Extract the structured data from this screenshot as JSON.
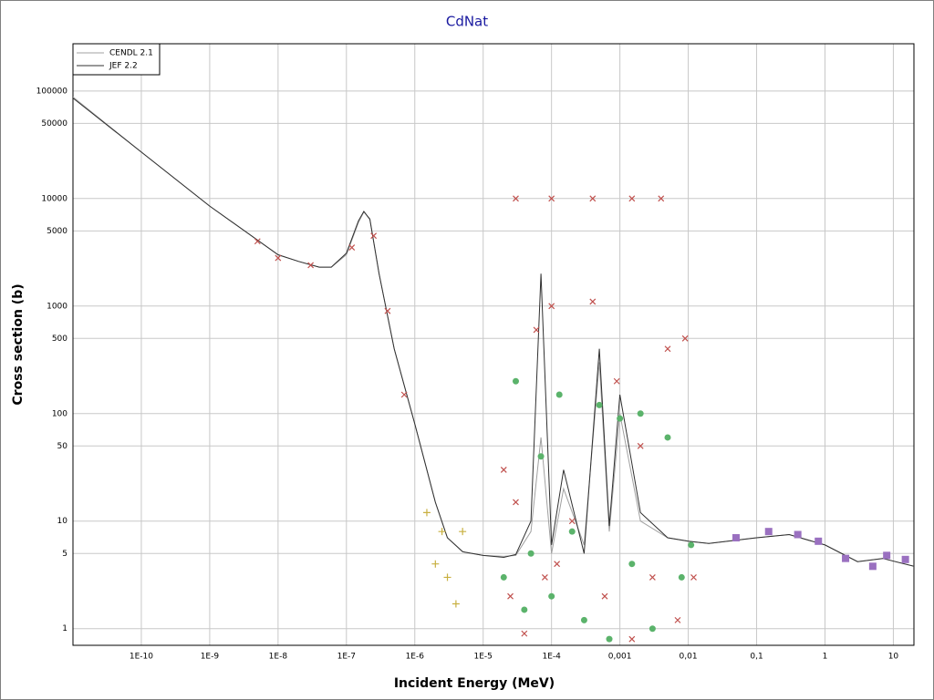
{
  "chart_data": {
    "type": "line",
    "title": "CdNat",
    "x_label": "Incident Energy (MeV)",
    "y_label": "Cross section (b)",
    "xlog": true,
    "ylog": true,
    "grid": true,
    "legend": "top-left",
    "xlim": [
      1e-11,
      20
    ],
    "ylim": [
      0.7,
      275000
    ],
    "xticks": [
      {
        "value": 1e-10,
        "label": "1E-10"
      },
      {
        "value": 1e-09,
        "label": "1E-9"
      },
      {
        "value": 1e-08,
        "label": "1E-8"
      },
      {
        "value": 1e-07,
        "label": "1E-7"
      },
      {
        "value": 1e-06,
        "label": "1E-6"
      },
      {
        "value": 1e-05,
        "label": "1E-5"
      },
      {
        "value": 0.0001,
        "label": "1E-4"
      },
      {
        "value": 0.001,
        "label": "0,001"
      },
      {
        "value": 0.01,
        "label": "0,01"
      },
      {
        "value": 0.1,
        "label": "0,1"
      },
      1,
      10
    ],
    "yticks": [
      1,
      5,
      10,
      50,
      100,
      500,
      1000,
      5000,
      10000,
      50000,
      100000
    ],
    "series": [
      {
        "name": "CENDL 2.1",
        "color": "#a0a0a0",
        "x": [
          1e-11,
          1e-10,
          1e-09,
          1e-08,
          2e-08,
          4e-08,
          6e-08,
          1e-07,
          1.5e-07,
          1.8e-07,
          2.2e-07,
          3e-07,
          5e-07,
          1e-06,
          2e-06,
          3e-06,
          5e-06,
          1e-05,
          2e-05,
          3e-05,
          5e-05,
          7e-05,
          0.0001,
          0.00015,
          0.0003,
          0.0005,
          0.0007,
          0.001,
          0.002,
          0.005,
          0.01,
          0.02,
          0.1,
          0.3,
          1,
          3,
          7,
          20
        ],
        "values": [
          88000,
          27000,
          8500,
          3000,
          2600,
          2300,
          2300,
          3000,
          6000,
          7500,
          6500,
          2000,
          400,
          80,
          15,
          7,
          5.2,
          4.8,
          4.7,
          4.8,
          8,
          60,
          5,
          20,
          6,
          300,
          8,
          100,
          10,
          7,
          6.5,
          6.2,
          7,
          7.5,
          6,
          4.2,
          4.5,
          3.8
        ]
      },
      {
        "name": "JEF 2.2",
        "color": "#303030",
        "x": [
          1e-11,
          1e-10,
          1e-09,
          1e-08,
          2e-08,
          4e-08,
          6e-08,
          1e-07,
          1.5e-07,
          1.8e-07,
          2.2e-07,
          3e-07,
          5e-07,
          1e-06,
          2e-06,
          3e-06,
          5e-06,
          1e-05,
          2e-05,
          3e-05,
          5e-05,
          7e-05,
          0.0001,
          0.00015,
          0.0003,
          0.0005,
          0.0007,
          0.001,
          0.002,
          0.005,
          0.01,
          0.02,
          0.1,
          0.3,
          1,
          3,
          7,
          20
        ],
        "values": [
          86000,
          27000,
          8500,
          3000,
          2600,
          2300,
          2300,
          3100,
          6200,
          7600,
          6400,
          2000,
          400,
          80,
          15,
          7,
          5.2,
          4.8,
          4.6,
          4.9,
          10,
          2000,
          6,
          30,
          5,
          400,
          9,
          150,
          12,
          7,
          6.5,
          6.2,
          7,
          7.5,
          6,
          4.2,
          4.5,
          3.8
        ]
      },
      {
        "color": "#c0504d",
        "marker": "x",
        "x": [
          5e-09,
          1e-08,
          3e-08,
          1.2e-07,
          2.5e-07,
          4e-07,
          7e-07,
          2e-05,
          2.5e-05,
          3e-05,
          4e-05,
          6e-05,
          8e-05,
          0.0001,
          0.00012,
          0.0002,
          0.0004,
          0.0006,
          0.0009,
          0.0015,
          0.002,
          0.003,
          0.005,
          0.007,
          0.009,
          0.012,
          3e-05,
          0.0001,
          0.0004,
          0.0015,
          0.004
        ],
        "values": [
          4000,
          2800,
          2400,
          3500,
          4500,
          900,
          150,
          30,
          2,
          15,
          0.9,
          600,
          3,
          1000,
          4,
          10,
          1100,
          2,
          200,
          0.8,
          50,
          3,
          400,
          1.2,
          500,
          3,
          10000,
          10000,
          10000,
          10000,
          10000
        ]
      },
      {
        "color": "#5bb36b",
        "marker": "o",
        "x": [
          2e-05,
          3e-05,
          4e-05,
          5e-05,
          7e-05,
          0.0001,
          0.00013,
          0.0002,
          0.0003,
          0.0005,
          0.0007,
          0.001,
          0.0015,
          0.002,
          0.003,
          0.005,
          0.008,
          0.011
        ],
        "values": [
          3,
          200,
          1.5,
          5,
          40,
          2,
          150,
          8,
          1.2,
          120,
          0.8,
          90,
          4,
          100,
          1,
          60,
          3,
          6
        ]
      },
      {
        "color": "#c8b040",
        "marker": "+",
        "x": [
          1.5e-06,
          2e-06,
          2.5e-06,
          3e-06,
          4e-06,
          5e-06
        ],
        "values": [
          12,
          4,
          8,
          3,
          1.7,
          8
        ]
      },
      {
        "color": "#9a70c0",
        "marker": "s",
        "x": [
          0.05,
          0.15,
          0.4,
          0.8,
          2,
          5,
          8,
          15
        ],
        "values": [
          7,
          8,
          7.5,
          6.5,
          4.5,
          3.8,
          4.8,
          4.4
        ]
      }
    ]
  }
}
